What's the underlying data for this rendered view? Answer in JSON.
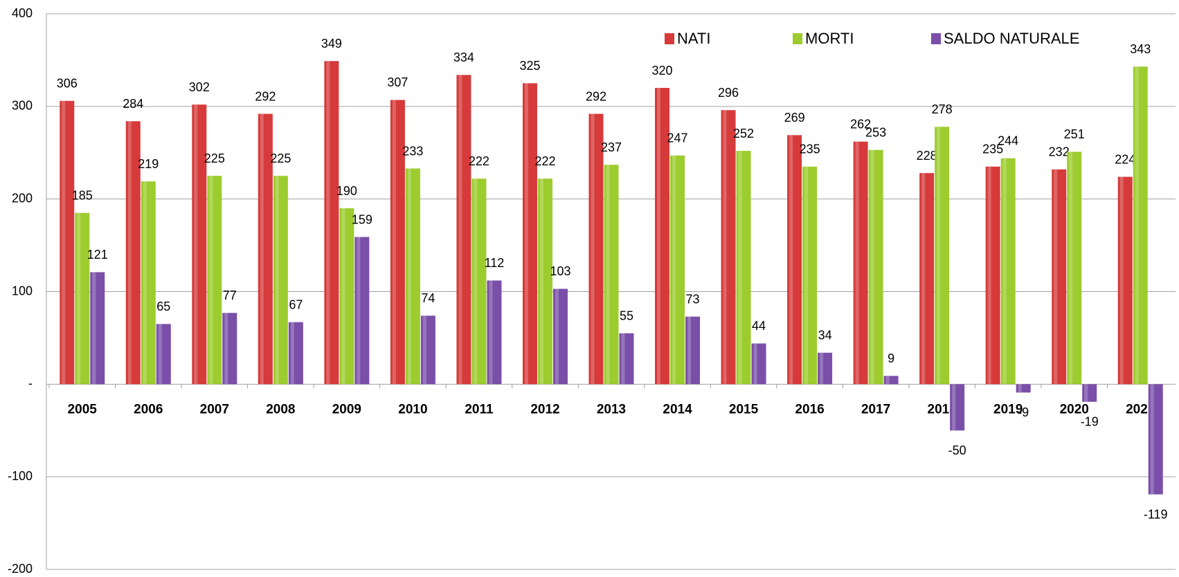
{
  "chart_data": {
    "type": "bar",
    "categories": [
      "2005",
      "2006",
      "2007",
      "2008",
      "2009",
      "2010",
      "2011",
      "2012",
      "2013",
      "2014",
      "2015",
      "2016",
      "2017",
      "2018",
      "2019",
      "2020",
      "2021"
    ],
    "series": [
      {
        "name": "NATI",
        "color": "#d63a3a",
        "values": [
          306,
          284,
          302,
          292,
          349,
          307,
          334,
          325,
          292,
          320,
          296,
          269,
          262,
          228,
          235,
          232,
          224
        ]
      },
      {
        "name": "MORTI",
        "color": "#9ccc2e",
        "values": [
          185,
          219,
          225,
          225,
          190,
          233,
          222,
          222,
          237,
          247,
          252,
          235,
          253,
          278,
          244,
          251,
          343
        ]
      },
      {
        "name": "SALDO NATURALE",
        "color": "#7a4fa8",
        "values": [
          121,
          65,
          77,
          67,
          159,
          74,
          112,
          103,
          55,
          73,
          44,
          34,
          9,
          -50,
          -9,
          -19,
          -119
        ]
      }
    ],
    "ylim": [
      -200,
      400
    ],
    "yticks": [
      -200,
      -100,
      {
        "value": 0,
        "label": "-"
      },
      100,
      200,
      300,
      400
    ],
    "grid": true,
    "legend": "top"
  }
}
